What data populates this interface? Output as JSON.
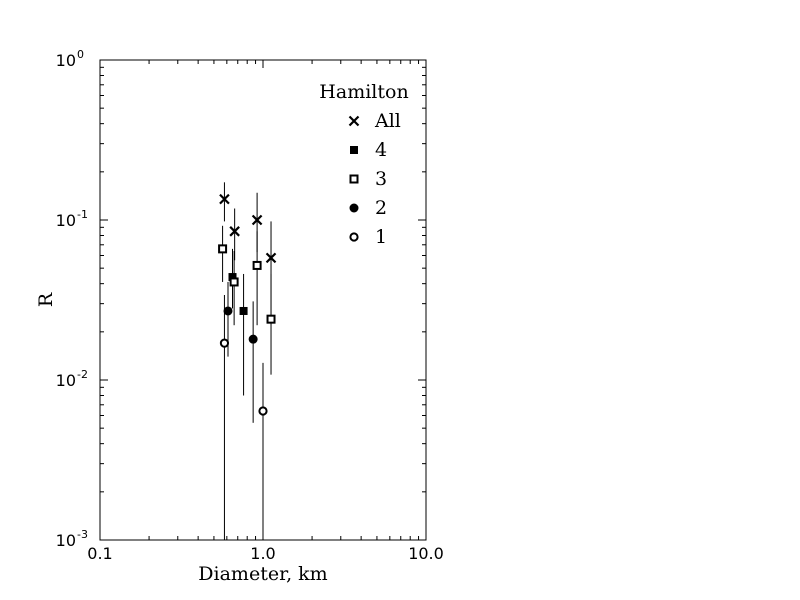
{
  "chart_data": {
    "type": "scatter",
    "title": "",
    "xlabel": "Diameter, km",
    "ylabel": "R",
    "xscale": "log",
    "yscale": "log",
    "xlim": [
      0.1,
      10.0
    ],
    "ylim": [
      0.001,
      1.0
    ],
    "x_ticks": [
      {
        "value": 0.1,
        "label": "0.1"
      },
      {
        "value": 1.0,
        "label": "1.0"
      },
      {
        "value": 10.0,
        "label": "10.0"
      }
    ],
    "y_ticks": [
      {
        "value": 0.001,
        "base": "10",
        "exp": "-3"
      },
      {
        "value": 0.01,
        "base": "10",
        "exp": "-2"
      },
      {
        "value": 0.1,
        "base": "10",
        "exp": "-1"
      },
      {
        "value": 1.0,
        "base": "10",
        "exp": "0"
      }
    ],
    "legend": {
      "title": "Hamilton",
      "position": "top-right"
    },
    "series": [
      {
        "name": "All",
        "marker": "x",
        "points": [
          {
            "x": 0.58,
            "y": 0.135,
            "ylo": 0.098,
            "yhi": 0.172
          },
          {
            "x": 0.67,
            "y": 0.085,
            "ylo": 0.056,
            "yhi": 0.118
          },
          {
            "x": 0.92,
            "y": 0.1,
            "ylo": 0.063,
            "yhi": 0.148
          },
          {
            "x": 1.12,
            "y": 0.058,
            "ylo": 0.022,
            "yhi": 0.098
          }
        ]
      },
      {
        "name": "4",
        "marker": "filled-square",
        "points": [
          {
            "x": 0.65,
            "y": 0.044,
            "ylo": 0.028,
            "yhi": 0.066
          },
          {
            "x": 0.76,
            "y": 0.027,
            "ylo": 0.008,
            "yhi": 0.046
          }
        ]
      },
      {
        "name": "3",
        "marker": "open-square",
        "points": [
          {
            "x": 0.565,
            "y": 0.066,
            "ylo": 0.041,
            "yhi": 0.092
          },
          {
            "x": 0.665,
            "y": 0.041,
            "ylo": 0.022,
            "yhi": 0.064
          },
          {
            "x": 0.92,
            "y": 0.052,
            "ylo": 0.022,
            "yhi": 0.085
          },
          {
            "x": 1.12,
            "y": 0.024,
            "ylo": 0.0108,
            "yhi": 0.046
          }
        ]
      },
      {
        "name": "2",
        "marker": "filled-circle",
        "points": [
          {
            "x": 0.61,
            "y": 0.027,
            "ylo": 0.014,
            "yhi": 0.041
          },
          {
            "x": 0.87,
            "y": 0.018,
            "ylo": 0.0054,
            "yhi": 0.031
          }
        ]
      },
      {
        "name": "1",
        "marker": "open-circle",
        "points": [
          {
            "x": 0.58,
            "y": 0.017,
            "ylo": 0.001,
            "yhi": 0.034
          },
          {
            "x": 1.0,
            "y": 0.0064,
            "ylo": 0.001,
            "yhi": 0.0128
          }
        ]
      }
    ]
  }
}
